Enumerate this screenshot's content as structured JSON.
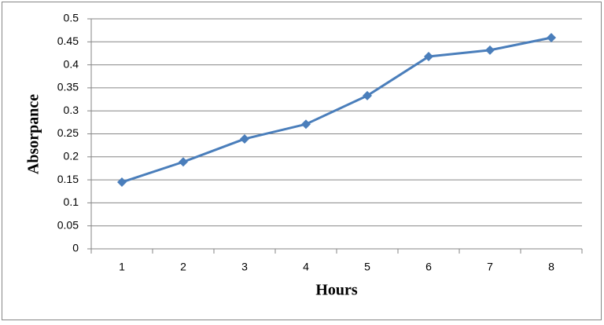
{
  "chart_data": {
    "type": "line",
    "categories": [
      "1",
      "2",
      "3",
      "4",
      "5",
      "6",
      "7",
      "8"
    ],
    "values": [
      0.145,
      0.189,
      0.239,
      0.271,
      0.333,
      0.418,
      0.432,
      0.459
    ],
    "color": "#4a7ebb",
    "x_label": "Hours",
    "y_label": "Absorpance",
    "ylim": [
      0,
      0.5
    ],
    "yticks": [
      0,
      0.05,
      0.1,
      0.15,
      0.2,
      0.25,
      0.3,
      0.35,
      0.4,
      0.45,
      0.5
    ],
    "grid": true
  }
}
